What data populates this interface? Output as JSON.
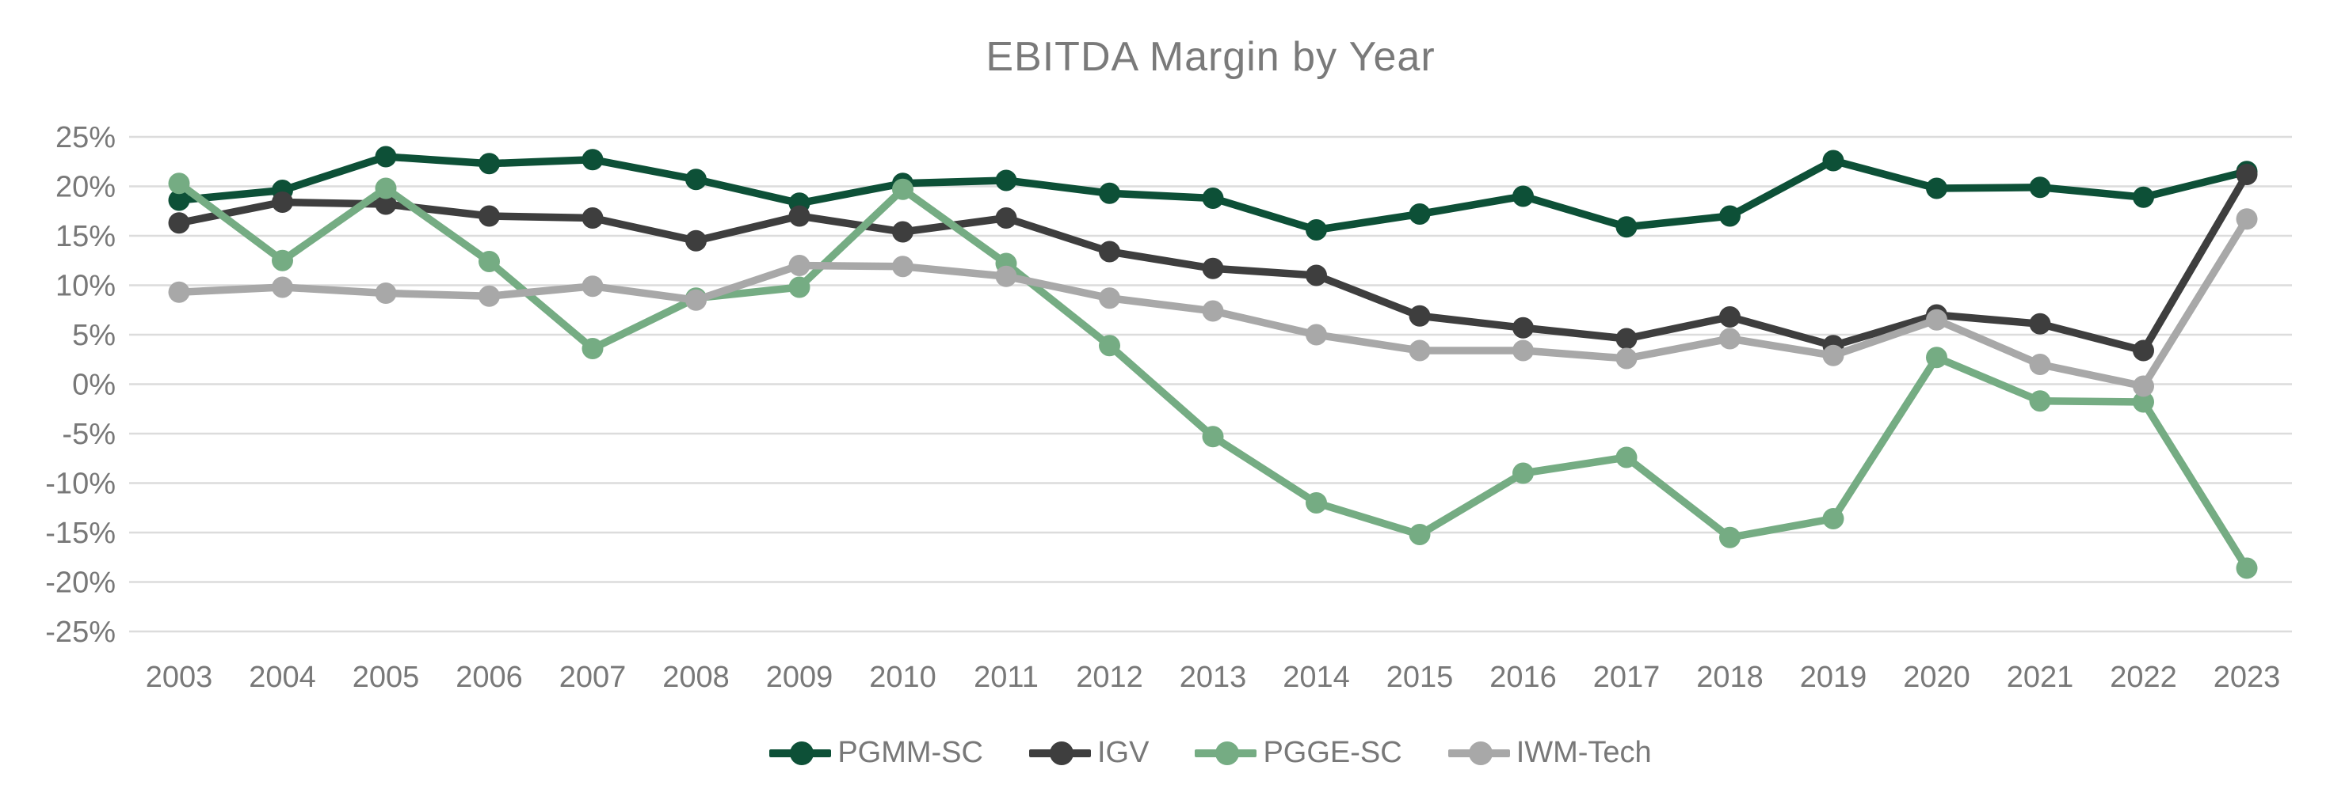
{
  "chart_data": {
    "type": "line",
    "title": "EBITDA Margin by Year",
    "xlabel": "",
    "ylabel": "",
    "ylim": [
      -27,
      27
    ],
    "grid": "horizontal",
    "grid_color": "#dcdcdc",
    "text_color": "#787878",
    "legend_position": "bottom",
    "x_axis": {
      "labels": [
        "2003",
        "2004",
        "2005",
        "2006",
        "2007",
        "2008",
        "2009",
        "2010",
        "2011",
        "2012",
        "2013",
        "2014",
        "2015",
        "2016",
        "2017",
        "2018",
        "2019",
        "2020",
        "2021",
        "2022",
        "2023"
      ]
    },
    "y_axis": {
      "ticks": [
        {
          "label": "25%",
          "value": 25
        },
        {
          "label": "20%",
          "value": 20
        },
        {
          "label": "15%",
          "value": 15
        },
        {
          "label": "10%",
          "value": 10
        },
        {
          "label": "5%",
          "value": 5
        },
        {
          "label": "0%",
          "value": 0
        },
        {
          "label": "-5%",
          "value": -5
        },
        {
          "label": "-10%",
          "value": -10
        },
        {
          "label": "-15%",
          "value": -15
        },
        {
          "label": "-20%",
          "value": -20
        },
        {
          "label": "-25%",
          "value": -25
        }
      ]
    },
    "series": [
      {
        "name": "PGMM-SC",
        "color": "#0d5037",
        "values": [
          18.6,
          19.6,
          23.0,
          22.3,
          22.7,
          20.7,
          18.3,
          20.3,
          20.6,
          19.3,
          18.8,
          15.6,
          17.2,
          19.0,
          15.9,
          17.0,
          22.6,
          19.8,
          19.9,
          18.9,
          21.5
        ]
      },
      {
        "name": "IGV",
        "color": "#3e3e3e",
        "values": [
          16.3,
          18.4,
          18.2,
          17.0,
          16.8,
          14.5,
          17.0,
          15.4,
          16.8,
          13.4,
          11.7,
          11.0,
          6.9,
          5.7,
          4.6,
          6.8,
          3.9,
          7.0,
          6.1,
          3.4,
          21.2
        ]
      },
      {
        "name": "PGGE-SC",
        "color": "#75ac83",
        "values": [
          20.3,
          12.5,
          19.8,
          12.4,
          3.6,
          8.7,
          9.8,
          19.7,
          12.2,
          3.9,
          -5.3,
          -12.0,
          -15.2,
          -9.0,
          -7.4,
          -15.5,
          -13.6,
          2.7,
          -1.7,
          -1.8,
          -18.6
        ]
      },
      {
        "name": "IWM-Tech",
        "color": "#a8a8a8",
        "values": [
          9.3,
          9.8,
          9.2,
          8.9,
          9.9,
          8.5,
          12.0,
          11.9,
          10.9,
          8.7,
          7.4,
          5.0,
          3.4,
          3.4,
          2.6,
          4.6,
          2.9,
          6.5,
          2.0,
          -0.2,
          16.7
        ]
      }
    ]
  }
}
